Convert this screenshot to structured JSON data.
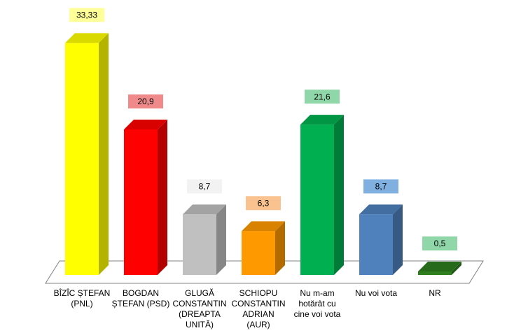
{
  "chart_data": {
    "type": "bar3d",
    "categories": [
      "BÎZÎC ȘTEFAN\n(PNL)",
      "BOGDAN\nȘTEFAN (PSD)",
      "GLUGĂ\nCONSTANTIN\n(DREAPTA\nUNITĂ)",
      "SCHIOPU\nCONSTANTIN\nADRIAN\n(AUR)",
      "Nu m-am\nhotărât cu\ncine voi vota",
      "Nu voi vota",
      "NR"
    ],
    "values": [
      33.33,
      20.9,
      8.7,
      6.3,
      21.6,
      8.7,
      0.5
    ],
    "value_labels": [
      "33,33",
      "20,9",
      "8,7",
      "6,3",
      "21,6",
      "8,7",
      "0,5"
    ],
    "colors": [
      "#ffff00",
      "#ff0000",
      "#c0c0c0",
      "#ff9900",
      "#00b050",
      "#4f81bd",
      "#2e7d1e"
    ],
    "label_colors": [
      "#ffff99",
      "#f08a8a",
      "#f2f2f2",
      "#fac28e",
      "#8fd6a8",
      "#7fb0e0",
      "#8fd6a8"
    ]
  }
}
